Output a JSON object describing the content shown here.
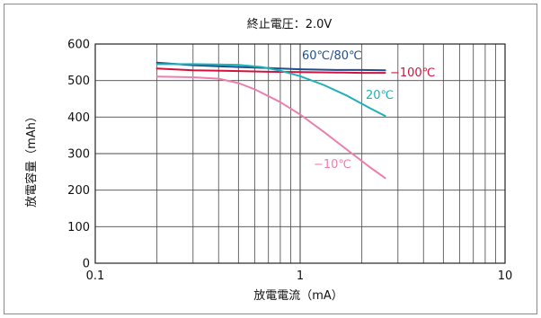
{
  "chart_data": {
    "type": "line",
    "title": "終止電圧：2.0V",
    "xlabel": "放電電流（mA）",
    "ylabel": "放電容量（mAh）",
    "xscale": "log",
    "xlim": [
      0.1,
      10
    ],
    "ylim": [
      0,
      600
    ],
    "xticks": [
      "0.1",
      "1",
      "10"
    ],
    "xtick_values": [
      0.1,
      1,
      10
    ],
    "yticks": [
      "0",
      "100",
      "200",
      "300",
      "400",
      "500",
      "600"
    ],
    "ytick_values": [
      0,
      100,
      200,
      300,
      400,
      500,
      600
    ],
    "grid": true,
    "series": [
      {
        "name": "60℃/80℃",
        "color": "#1f4e8c",
        "x": [
          0.2,
          0.3,
          0.5,
          0.7,
          1.0,
          1.5,
          2.0,
          2.6
        ],
        "y": [
          549,
          542,
          537,
          534,
          531,
          529,
          529,
          528
        ]
      },
      {
        "name": "−100℃",
        "color": "#d4123d",
        "x": [
          0.2,
          0.3,
          0.5,
          0.7,
          1.0,
          1.5,
          2.0,
          2.6
        ],
        "y": [
          533,
          528,
          526,
          524,
          523,
          522,
          521,
          521
        ]
      },
      {
        "name": "20℃",
        "color": "#1fb0b8",
        "x": [
          0.2,
          0.3,
          0.5,
          0.65,
          0.8,
          1.0,
          1.3,
          1.7,
          2.2,
          2.6
        ],
        "y": [
          545,
          545,
          543,
          537,
          527,
          512,
          488,
          458,
          424,
          403
        ]
      },
      {
        "name": "−10℃",
        "color": "#ec7fb0",
        "x": [
          0.2,
          0.3,
          0.4,
          0.5,
          0.6,
          0.8,
          1.0,
          1.3,
          1.7,
          2.2,
          2.6
        ],
        "y": [
          511,
          509,
          505,
          493,
          476,
          441,
          407,
          360,
          310,
          262,
          233
        ]
      }
    ]
  }
}
